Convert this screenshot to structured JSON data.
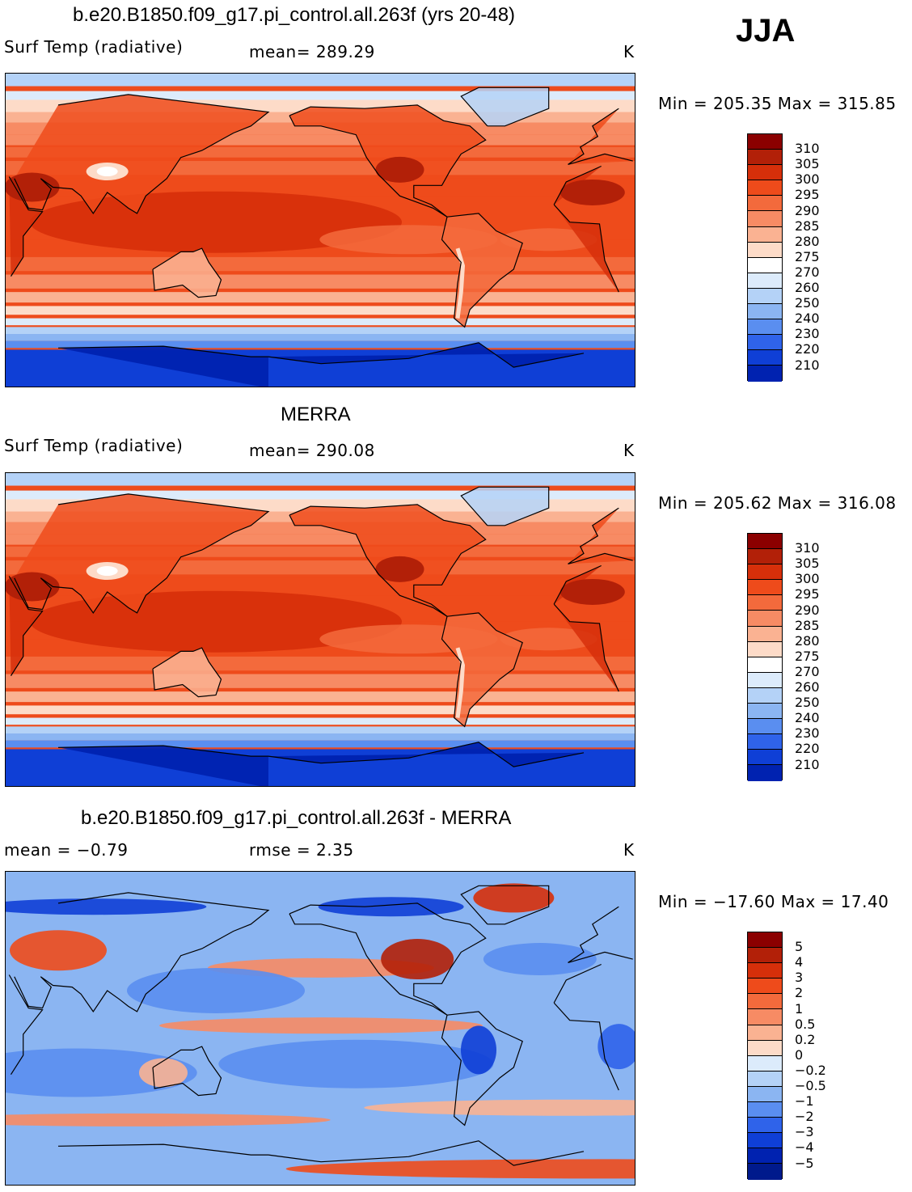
{
  "season": "JJA",
  "panels": [
    {
      "title": "b.e20.B1850.f09_g17.pi_control.all.263f (yrs 20-48)",
      "left_label": "Surf Temp (radiative)",
      "center_label": "mean= 289.29",
      "units": "K",
      "minmax": "Min = 205.35 Max = 315.85",
      "colorbar": {
        "labels": [
          "310",
          "305",
          "300",
          "295",
          "290",
          "285",
          "280",
          "275",
          "270",
          "260",
          "250",
          "240",
          "230",
          "220",
          "210"
        ],
        "colors": [
          "#8b0000",
          "#b22008",
          "#d62f0a",
          "#ee4b1b",
          "#f36a3c",
          "#f78b64",
          "#fab292",
          "#fddbc8",
          "#ffffff",
          "#dcebfb",
          "#b4d2f7",
          "#8bb5f2",
          "#5a8ef0",
          "#2f63ea",
          "#0f3fd6",
          "#0022b0"
        ]
      },
      "field": "model"
    },
    {
      "title": "MERRA",
      "left_label": "Surf Temp (radiative)",
      "center_label": "mean= 290.08",
      "units": "K",
      "minmax": "Min = 205.62 Max = 316.08",
      "colorbar": {
        "labels": [
          "310",
          "305",
          "300",
          "295",
          "290",
          "285",
          "280",
          "275",
          "270",
          "260",
          "250",
          "240",
          "230",
          "220",
          "210"
        ],
        "colors": [
          "#8b0000",
          "#b22008",
          "#d62f0a",
          "#ee4b1b",
          "#f36a3c",
          "#f78b64",
          "#fab292",
          "#fddbc8",
          "#ffffff",
          "#dcebfb",
          "#b4d2f7",
          "#8bb5f2",
          "#5a8ef0",
          "#2f63ea",
          "#0f3fd6",
          "#0022b0"
        ]
      },
      "field": "obs"
    },
    {
      "title": "b.e20.B1850.f09_g17.pi_control.all.263f - MERRA",
      "left_label": "mean =   −0.79",
      "center_label": "rmse =    2.35",
      "units": "K",
      "minmax": "Min = −17.60 Max =   17.40",
      "colorbar": {
        "labels": [
          "5",
          "4",
          "3",
          "2",
          "1",
          "0.5",
          "0.2",
          "0",
          "−0.2",
          "−0.5",
          "−1",
          "−2",
          "−3",
          "−4",
          "−5"
        ],
        "colors": [
          "#8b0000",
          "#b22008",
          "#d62f0a",
          "#ee4b1b",
          "#f36a3c",
          "#f78b64",
          "#fab292",
          "#fddbc8",
          "#dcebfb",
          "#b4d2f7",
          "#8bb5f2",
          "#5a8ef0",
          "#2f63ea",
          "#0f3fd6",
          "#0022b0",
          "#001a8c"
        ]
      },
      "field": "diff"
    }
  ]
}
